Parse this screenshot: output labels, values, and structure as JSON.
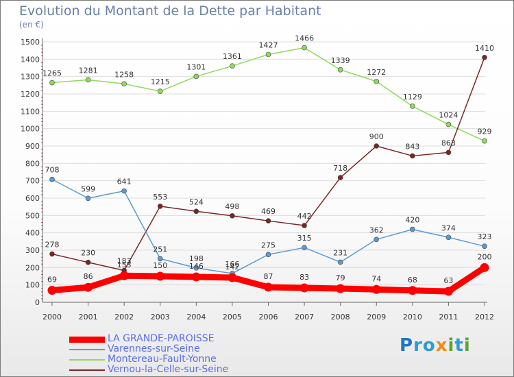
{
  "header": {
    "title": "Evolution du Montant de la Dette par Habitant",
    "subtitle": "(en €)"
  },
  "logo": {
    "text": "Proxiti",
    "colors": [
      "#1f74c4",
      "#f08a1c",
      "#5aa52c"
    ]
  },
  "chart_data": {
    "type": "line",
    "title": "Evolution du Montant de la Dette par Habitant",
    "subtitle": "(en €)",
    "xlabel": "",
    "ylabel": "",
    "x": [
      "2000",
      "2001",
      "2002",
      "2003",
      "2004",
      "2005",
      "2006",
      "2007",
      "2008",
      "2009",
      "2010",
      "2011",
      "2012"
    ],
    "ylim": [
      0,
      1500
    ],
    "yticks": [
      0,
      100,
      200,
      300,
      400,
      500,
      600,
      700,
      800,
      900,
      1000,
      1100,
      1200,
      1300,
      1400,
      1500
    ],
    "grid": "horizontal",
    "legend_position": "bottom-left",
    "series": [
      {
        "name": "LA GRANDE-PAROISSE",
        "color": "#ff0000",
        "values": [
          69,
          86,
          153,
          150,
          146,
          142,
          87,
          83,
          79,
          74,
          68,
          63,
          200
        ],
        "labels": [
          "69",
          "86",
          "153",
          "150",
          "146",
          "142",
          "87",
          "83",
          "79",
          "74",
          "68",
          "63",
          "200"
        ]
      },
      {
        "name": "Varennes-sur-Seine",
        "color": "#5b9bd5",
        "values": [
          708,
          599,
          641,
          251,
          198,
          166,
          275,
          315,
          231,
          362,
          420,
          374,
          323
        ],
        "labels": [
          "708",
          "599",
          "641",
          "251",
          "198",
          "166",
          "275",
          "315",
          "231",
          "362",
          "420",
          "374",
          "323"
        ]
      },
      {
        "name": "Montereau-Fault-Yonne",
        "color": "#8ed95a",
        "values": [
          1265,
          1281,
          1258,
          1215,
          1301,
          1361,
          1427,
          1466,
          1339,
          1272,
          1129,
          1024,
          929
        ],
        "labels": [
          "1265",
          "1281",
          "1258",
          "1215",
          "1301",
          "1361",
          "1427",
          "1466",
          "1339",
          "1272",
          "1129",
          "1024",
          "929"
        ]
      },
      {
        "name": "Vernou-la-Celle-sur-Seine",
        "color": "#7a2525",
        "values": [
          278,
          230,
          183,
          553,
          524,
          498,
          469,
          442,
          718,
          900,
          843,
          863,
          1410
        ],
        "labels": [
          "278",
          "230",
          "183",
          "553",
          "524",
          "498",
          "469",
          "442",
          "718",
          "900",
          "843",
          "863",
          "1410"
        ]
      }
    ]
  }
}
